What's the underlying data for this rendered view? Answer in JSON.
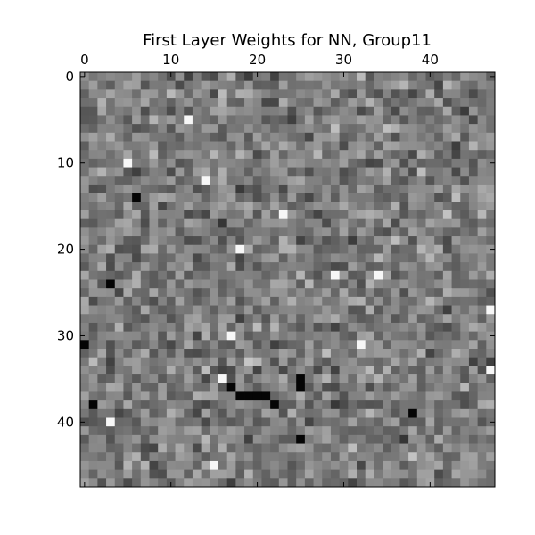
{
  "chart_data": {
    "type": "heatmap",
    "title": "First Layer Weights for NN, Group11",
    "rows": 48,
    "cols": 48,
    "colormap": "gray",
    "x_ticks": [
      "0",
      "10",
      "20",
      "30",
      "40"
    ],
    "y_ticks": [
      "0",
      "10",
      "20",
      "30",
      "40"
    ],
    "x_tick_values": [
      0,
      10,
      20,
      30,
      40
    ],
    "y_tick_values": [
      0,
      10,
      20,
      30,
      40
    ],
    "xlim": [
      -0.5,
      47.5
    ],
    "ylim": [
      47.5,
      -0.5
    ],
    "x_axis_position": "top",
    "grid": false,
    "value_range": [
      0,
      1
    ],
    "dark_cells": [
      [
        24,
        3
      ],
      [
        14,
        6
      ],
      [
        31,
        0
      ],
      [
        36,
        17
      ],
      [
        37,
        18
      ],
      [
        37,
        19
      ],
      [
        37,
        20
      ],
      [
        37,
        21
      ],
      [
        38,
        22
      ],
      [
        36,
        25
      ],
      [
        35,
        25
      ],
      [
        39,
        38
      ],
      [
        38,
        1
      ],
      [
        42,
        25
      ]
    ],
    "bright_cells": [
      [
        10,
        5
      ],
      [
        12,
        14
      ],
      [
        20,
        18
      ],
      [
        23,
        29
      ],
      [
        23,
        34
      ],
      [
        30,
        17
      ],
      [
        31,
        32
      ],
      [
        35,
        16
      ],
      [
        40,
        3
      ],
      [
        45,
        15
      ],
      [
        5,
        12
      ],
      [
        16,
        23
      ],
      [
        27,
        47
      ],
      [
        34,
        47
      ]
    ]
  }
}
